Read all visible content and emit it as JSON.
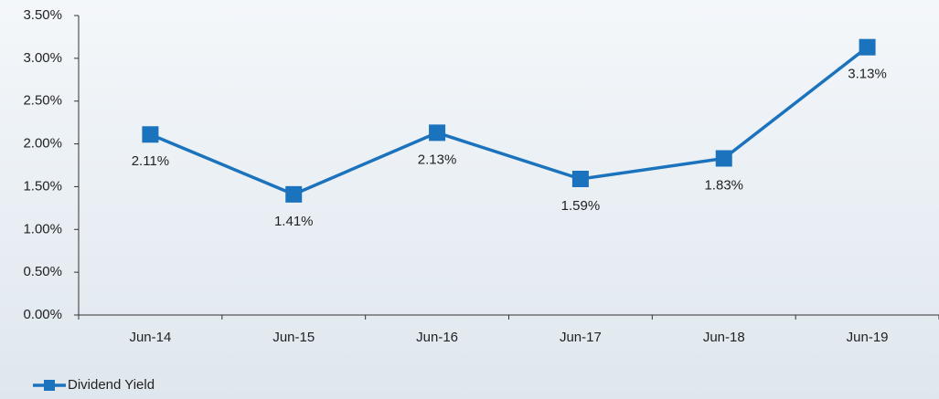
{
  "chart_data": {
    "type": "line",
    "categories": [
      "Jun-14",
      "Jun-15",
      "Jun-16",
      "Jun-17",
      "Jun-18",
      "Jun-19"
    ],
    "series": [
      {
        "name": "Dividend Yield",
        "color": "#1b72bd",
        "values": [
          2.11,
          1.41,
          2.13,
          1.59,
          1.83,
          3.13
        ],
        "value_labels": [
          "2.11%",
          "1.41%",
          "2.13%",
          "1.59%",
          "1.83%",
          "3.13%"
        ]
      }
    ],
    "ylim": [
      0,
      3.5
    ],
    "yticks": [
      {
        "value": 0,
        "label": "0.00%"
      },
      {
        "value": 0.5,
        "label": "0.50%"
      },
      {
        "value": 1,
        "label": "1.00%"
      },
      {
        "value": 1.5,
        "label": "1.50%"
      },
      {
        "value": 2,
        "label": "2.00%"
      },
      {
        "value": 2.5,
        "label": "2.50%"
      },
      {
        "value": 3,
        "label": "3.00%"
      },
      {
        "value": 3.5,
        "label": "3.50%"
      }
    ],
    "legend": "bottom-left"
  }
}
